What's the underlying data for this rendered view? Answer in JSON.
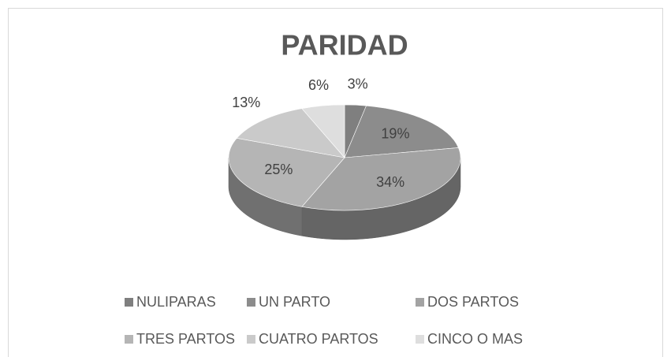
{
  "chart_data": {
    "type": "pie3d",
    "title": "PARIDAD",
    "categories": [
      "NULIPARAS",
      "UN PARTO",
      "DOS PARTOS",
      "TRES PARTOS",
      "CUATRO PARTOS",
      "CINCO O MAS"
    ],
    "values": [
      3,
      19,
      34,
      25,
      13,
      6
    ],
    "value_labels": [
      "3%",
      "19%",
      "34%",
      "25%",
      "13%",
      "6%"
    ],
    "colors": [
      "#7f7f7f",
      "#8c8c8c",
      "#a3a3a3",
      "#b5b5b5",
      "#cacaca",
      "#dedede"
    ],
    "legend": "bottom"
  }
}
